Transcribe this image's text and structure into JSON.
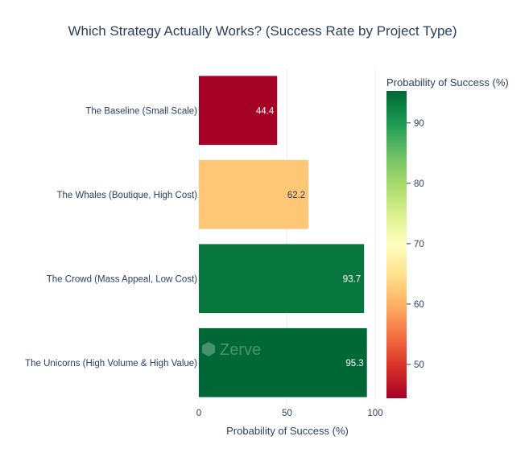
{
  "chart_data": {
    "type": "bar",
    "orientation": "horizontal",
    "title": "Which Strategy Actually Works? (Success Rate by Project Type)",
    "xlabel": "Probability of Success (%)",
    "ylabel": "",
    "xlim": [
      0,
      100
    ],
    "x_ticks": [
      "0",
      "50",
      "100"
    ],
    "grid": true,
    "categories": [
      "The Baseline (Small Scale)",
      "The Whales (Boutique, High Cost)",
      "The Crowd (Mass Appeal, Low Cost)",
      "The Unicorns (High Volume & High Value)"
    ],
    "values": [
      44.4,
      62.2,
      93.7,
      95.3
    ],
    "data_labels": [
      "44.4",
      "62.2",
      "93.7",
      "95.3"
    ],
    "colorscale": "RdYlGn",
    "colorbar": {
      "title": "Probability of Success (%)",
      "range": [
        44.4,
        95.3
      ],
      "ticks": [
        "50",
        "60",
        "70",
        "80",
        "90"
      ],
      "placement": "right"
    },
    "watermark": "Zerve"
  }
}
